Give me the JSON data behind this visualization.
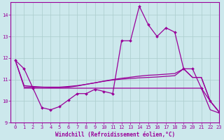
{
  "background_color": "#cce8ec",
  "grid_color": "#aacccc",
  "line_color": "#990099",
  "xlabel": "Windchill (Refroidissement éolien,°C)",
  "xlim": [
    -0.5,
    23
  ],
  "ylim": [
    9,
    14.6
  ],
  "yticks": [
    9,
    10,
    11,
    12,
    13,
    14
  ],
  "xticks": [
    0,
    1,
    2,
    3,
    4,
    5,
    6,
    7,
    8,
    9,
    10,
    11,
    12,
    13,
    14,
    15,
    16,
    17,
    18,
    19,
    20,
    21,
    22,
    23
  ],
  "series": {
    "line1_x": [
      0,
      1,
      2,
      3,
      4,
      5,
      6,
      7,
      8,
      9,
      10,
      11,
      12,
      13,
      14,
      15,
      16,
      17,
      18,
      19,
      20,
      21,
      22,
      23
    ],
    "line1_y": [
      11.9,
      11.5,
      10.6,
      9.7,
      9.6,
      9.75,
      10.05,
      10.35,
      10.35,
      10.55,
      10.45,
      10.35,
      12.8,
      12.8,
      14.4,
      13.55,
      13.0,
      13.4,
      13.2,
      11.5,
      11.5,
      10.6,
      10.0,
      9.5
    ],
    "line2_x": [
      1,
      2,
      3,
      4,
      5,
      6,
      7,
      8,
      9,
      10,
      11,
      12,
      13,
      14,
      15,
      16,
      17,
      18,
      19,
      20,
      21,
      22,
      23
    ],
    "line2_y": [
      10.6,
      10.6,
      10.6,
      10.6,
      10.6,
      10.6,
      10.6,
      10.6,
      10.6,
      10.6,
      10.6,
      10.6,
      10.6,
      10.6,
      10.6,
      10.6,
      10.6,
      10.6,
      10.6,
      10.6,
      10.6,
      9.6,
      9.45
    ],
    "line3_x": [
      0,
      1,
      2,
      3,
      4,
      5,
      6,
      7,
      8,
      9,
      10,
      11,
      12,
      13,
      14,
      15,
      16,
      17,
      18,
      19,
      20,
      21,
      22,
      23
    ],
    "line3_y": [
      11.9,
      10.65,
      10.65,
      10.65,
      10.65,
      10.65,
      10.68,
      10.72,
      10.78,
      10.85,
      10.92,
      10.98,
      11.02,
      11.05,
      11.08,
      11.1,
      11.12,
      11.15,
      11.18,
      11.5,
      11.1,
      11.1,
      10.0,
      9.5
    ],
    "line4_x": [
      0,
      1,
      2,
      3,
      4,
      5,
      6,
      7,
      8,
      9,
      10,
      11,
      12,
      13,
      14,
      15,
      16,
      17,
      18,
      19,
      20,
      21,
      22,
      23
    ],
    "line4_y": [
      11.9,
      10.72,
      10.68,
      10.65,
      10.63,
      10.63,
      10.65,
      10.7,
      10.78,
      10.85,
      10.93,
      11.0,
      11.06,
      11.11,
      11.16,
      11.2,
      11.22,
      11.25,
      11.28,
      11.5,
      11.1,
      11.1,
      10.0,
      9.5
    ]
  }
}
